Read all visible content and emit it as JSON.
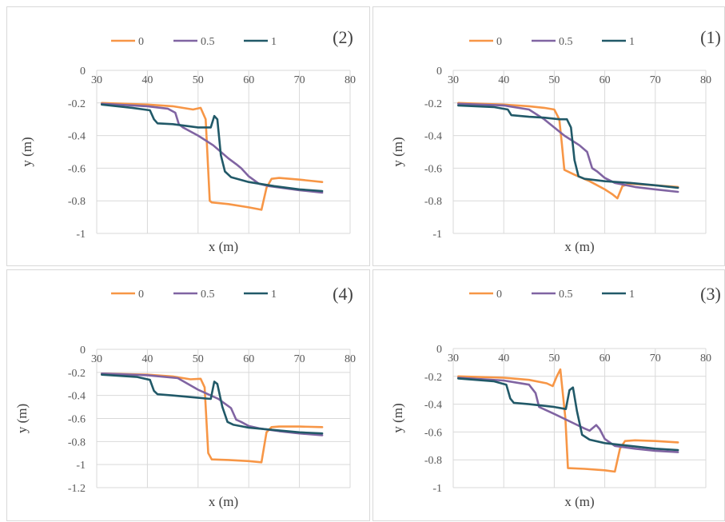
{
  "chart_data": [
    {
      "type": "line",
      "tag": "(2)",
      "xlabel": "x (m)",
      "ylabel": "y (m)",
      "xlim": [
        30,
        80
      ],
      "ylim": [
        -1,
        0
      ],
      "xticks": [
        "30",
        "40",
        "50",
        "60",
        "70",
        "80"
      ],
      "yticks": [
        "0",
        "-0.2",
        "-0.4",
        "-0.6",
        "-0.8",
        "-1"
      ],
      "grid": true,
      "legend_position": "top",
      "series": [
        {
          "name": "0",
          "color": "#F79646",
          "x": [
            31,
            40,
            45,
            49,
            50.5,
            51.5,
            52.3,
            52.7,
            56,
            60,
            62.5,
            63.5,
            64.5,
            66,
            70,
            74.5
          ],
          "y": [
            -0.2,
            -0.21,
            -0.22,
            -0.24,
            -0.23,
            -0.3,
            -0.8,
            -0.81,
            -0.82,
            -0.84,
            -0.855,
            -0.72,
            -0.665,
            -0.66,
            -0.67,
            -0.685
          ]
        },
        {
          "name": "0.5",
          "color": "#8064A2",
          "x": [
            31,
            40,
            44,
            45.5,
            46.2,
            47,
            50,
            53,
            56,
            57.5,
            58.5,
            60,
            62,
            64,
            70,
            74.5
          ],
          "y": [
            -0.205,
            -0.22,
            -0.235,
            -0.26,
            -0.33,
            -0.35,
            -0.4,
            -0.46,
            -0.54,
            -0.575,
            -0.6,
            -0.65,
            -0.695,
            -0.71,
            -0.735,
            -0.75
          ]
        },
        {
          "name": "1",
          "color": "#215968",
          "x": [
            31,
            37,
            40.5,
            41.3,
            42,
            45,
            50,
            52.5,
            53.2,
            53.8,
            54.5,
            55.3,
            56.5,
            60,
            65,
            70,
            74.5
          ],
          "y": [
            -0.21,
            -0.23,
            -0.245,
            -0.3,
            -0.325,
            -0.33,
            -0.35,
            -0.35,
            -0.28,
            -0.3,
            -0.52,
            -0.62,
            -0.655,
            -0.685,
            -0.71,
            -0.73,
            -0.74
          ]
        }
      ]
    },
    {
      "type": "line",
      "tag": "(1)",
      "xlabel": "x (m)",
      "ylabel": "y (m)",
      "xlim": [
        30,
        80
      ],
      "ylim": [
        -1,
        0
      ],
      "xticks": [
        "30",
        "40",
        "50",
        "60",
        "70",
        "80"
      ],
      "yticks": [
        "0",
        "-0.2",
        "-0.4",
        "-0.6",
        "-0.8",
        "-1"
      ],
      "grid": true,
      "legend_position": "top",
      "series": [
        {
          "name": "0",
          "color": "#F79646",
          "x": [
            31,
            40,
            45,
            48,
            50,
            51,
            51.5,
            52,
            54,
            57,
            60,
            61.5,
            62.5,
            63.5,
            65,
            70,
            74.5
          ],
          "y": [
            -0.2,
            -0.21,
            -0.22,
            -0.23,
            -0.24,
            -0.3,
            -0.45,
            -0.61,
            -0.64,
            -0.68,
            -0.73,
            -0.76,
            -0.785,
            -0.71,
            -0.695,
            -0.705,
            -0.715
          ]
        },
        {
          "name": "0.5",
          "color": "#8064A2",
          "x": [
            31,
            40,
            45,
            48,
            52,
            55,
            56.5,
            57.5,
            58.5,
            60,
            62,
            66,
            70,
            74.5
          ],
          "y": [
            -0.205,
            -0.215,
            -0.24,
            -0.3,
            -0.4,
            -0.46,
            -0.5,
            -0.6,
            -0.62,
            -0.66,
            -0.69,
            -0.715,
            -0.73,
            -0.745
          ]
        },
        {
          "name": "1",
          "color": "#215968",
          "x": [
            31,
            38,
            40.8,
            41.5,
            45,
            48,
            51,
            52.5,
            53.3,
            54,
            54.8,
            56,
            60,
            65,
            70,
            74.5
          ],
          "y": [
            -0.215,
            -0.225,
            -0.24,
            -0.275,
            -0.285,
            -0.29,
            -0.3,
            -0.3,
            -0.35,
            -0.55,
            -0.65,
            -0.665,
            -0.68,
            -0.69,
            -0.705,
            -0.72
          ]
        }
      ]
    },
    {
      "type": "line",
      "tag": "(4)",
      "xlabel": "x (m)",
      "ylabel": "y (m)",
      "xlim": [
        30,
        80
      ],
      "ylim": [
        -1.2,
        0
      ],
      "xticks": [
        "30",
        "40",
        "50",
        "60",
        "70",
        "80"
      ],
      "yticks": [
        "0",
        "-0.2",
        "-0.4",
        "-0.6",
        "-0.8",
        "-1",
        "-1.2"
      ],
      "grid": true,
      "legend_position": "top",
      "series": [
        {
          "name": "0",
          "color": "#F79646",
          "x": [
            31,
            40,
            45,
            48.5,
            50.5,
            51.3,
            52,
            52.7,
            56,
            60,
            62.5,
            63.5,
            64.5,
            66,
            70,
            74.5
          ],
          "y": [
            -0.21,
            -0.22,
            -0.235,
            -0.26,
            -0.255,
            -0.33,
            -0.9,
            -0.955,
            -0.96,
            -0.97,
            -0.98,
            -0.72,
            -0.675,
            -0.67,
            -0.67,
            -0.675
          ]
        },
        {
          "name": "0.5",
          "color": "#8064A2",
          "x": [
            31,
            40,
            46,
            50,
            54,
            56.5,
            57.5,
            58.5,
            60,
            62,
            66,
            70,
            74.5
          ],
          "y": [
            -0.21,
            -0.225,
            -0.25,
            -0.35,
            -0.43,
            -0.51,
            -0.61,
            -0.63,
            -0.665,
            -0.685,
            -0.71,
            -0.73,
            -0.745
          ]
        },
        {
          "name": "1",
          "color": "#215968",
          "x": [
            31,
            38,
            40.5,
            41.3,
            42,
            45,
            50,
            52.5,
            53.2,
            53.8,
            54.8,
            55.8,
            57,
            60,
            65,
            70,
            74.5
          ],
          "y": [
            -0.22,
            -0.24,
            -0.265,
            -0.36,
            -0.39,
            -0.4,
            -0.42,
            -0.43,
            -0.28,
            -0.3,
            -0.5,
            -0.63,
            -0.655,
            -0.68,
            -0.7,
            -0.72,
            -0.73
          ]
        }
      ]
    },
    {
      "type": "line",
      "tag": "(3)",
      "xlabel": "x (m)",
      "ylabel": "y (m)",
      "xlim": [
        30,
        80
      ],
      "ylim": [
        -1,
        0
      ],
      "xticks": [
        "30",
        "40",
        "50",
        "60",
        "70",
        "80"
      ],
      "yticks": [
        "0",
        "-0.2",
        "-0.4",
        "-0.6",
        "-0.8",
        "-1"
      ],
      "grid": true,
      "legend_position": "top",
      "series": [
        {
          "name": "0",
          "color": "#F79646",
          "x": [
            31,
            40,
            45,
            48.5,
            49.7,
            50.5,
            51.2,
            52.2,
            52.7,
            56,
            60,
            62,
            63,
            64,
            66,
            70,
            74.5
          ],
          "y": [
            -0.2,
            -0.21,
            -0.225,
            -0.25,
            -0.27,
            -0.2,
            -0.15,
            -0.5,
            -0.86,
            -0.865,
            -0.875,
            -0.885,
            -0.72,
            -0.665,
            -0.66,
            -0.665,
            -0.675
          ]
        },
        {
          "name": "0.5",
          "color": "#8064A2",
          "x": [
            31,
            40,
            45,
            46.3,
            47,
            50,
            54,
            56,
            57,
            58.3,
            59,
            60,
            62,
            66,
            70,
            74.5
          ],
          "y": [
            -0.21,
            -0.23,
            -0.26,
            -0.32,
            -0.42,
            -0.47,
            -0.54,
            -0.575,
            -0.59,
            -0.55,
            -0.58,
            -0.65,
            -0.7,
            -0.72,
            -0.735,
            -0.745
          ]
        },
        {
          "name": "1",
          "color": "#215968",
          "x": [
            31,
            38,
            40.5,
            41.3,
            42,
            45,
            50,
            52.3,
            53,
            53.7,
            54.5,
            55.5,
            57,
            60,
            65,
            70,
            74.5
          ],
          "y": [
            -0.215,
            -0.235,
            -0.26,
            -0.36,
            -0.39,
            -0.4,
            -0.42,
            -0.435,
            -0.3,
            -0.28,
            -0.45,
            -0.62,
            -0.655,
            -0.68,
            -0.7,
            -0.72,
            -0.73
          ]
        }
      ]
    }
  ]
}
